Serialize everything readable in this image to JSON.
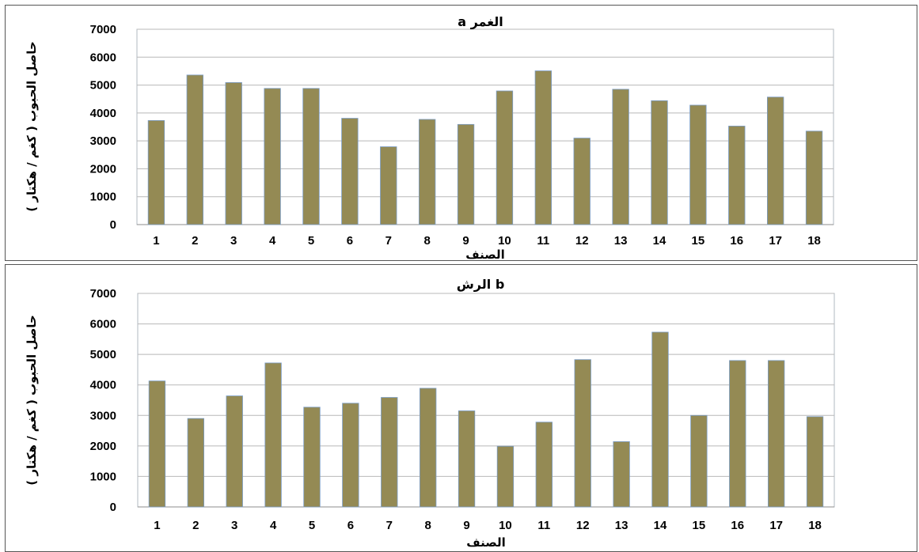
{
  "chart_data": [
    {
      "type": "bar",
      "title": "a   الغمر",
      "xlabel": "الصنف",
      "ylabel": "حاصل الحبوب ( كغم / هكتار )",
      "ylim": [
        0,
        7000
      ],
      "yticks": [
        0,
        1000,
        2000,
        3000,
        4000,
        5000,
        6000,
        7000
      ],
      "grid": true,
      "categories": [
        "1",
        "2",
        "3",
        "4",
        "5",
        "6",
        "7",
        "8",
        "9",
        "10",
        "11",
        "12",
        "13",
        "14",
        "15",
        "16",
        "17",
        "18"
      ],
      "values": [
        3730,
        5360,
        5090,
        4880,
        4880,
        3810,
        2790,
        3770,
        3590,
        4790,
        5510,
        3100,
        4850,
        4440,
        4280,
        3530,
        4570,
        3350
      ],
      "color": "#948a54"
    },
    {
      "type": "bar",
      "title": "الرش b",
      "xlabel": "الصنف",
      "ylabel": "حاصل الحبوب ( كغم / هكتار )",
      "ylim": [
        0,
        7000
      ],
      "yticks": [
        0,
        1000,
        2000,
        3000,
        4000,
        5000,
        6000,
        7000
      ],
      "grid": true,
      "categories": [
        "1",
        "2",
        "3",
        "4",
        "5",
        "6",
        "7",
        "8",
        "9",
        "10",
        "11",
        "12",
        "13",
        "14",
        "15",
        "16",
        "17",
        "18"
      ],
      "values": [
        4130,
        2900,
        3640,
        4720,
        3270,
        3400,
        3590,
        3890,
        3150,
        1990,
        2780,
        4830,
        2140,
        5730,
        3000,
        4800,
        4800,
        2960
      ],
      "color": "#948a54"
    }
  ]
}
